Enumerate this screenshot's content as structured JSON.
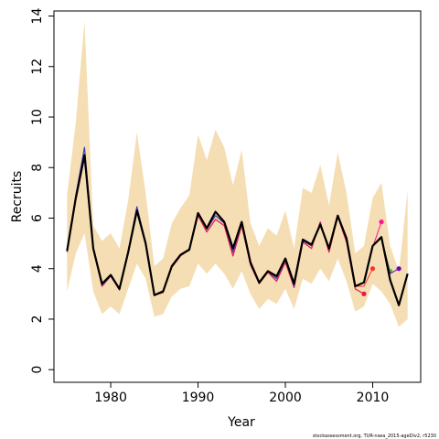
{
  "chart_data": {
    "type": "line",
    "xlabel": "Year",
    "ylabel": "Recruits",
    "xlim": [
      1973.5,
      2015.5
    ],
    "ylim": [
      -0.5,
      14.2
    ],
    "x_ticks": [
      "1980",
      "1990",
      "2000",
      "2010"
    ],
    "y_ticks": [
      "0",
      "2",
      "4",
      "6",
      "8",
      "10",
      "12",
      "14"
    ],
    "grid": false,
    "footer": "stockassessment.org, TUR-nsea_2015-ageDiv2, r5230",
    "confidence_band": {
      "color": "#f5deb3",
      "years": [
        1975,
        1976,
        1977,
        1978,
        1979,
        1980,
        1981,
        1982,
        1983,
        1984,
        1985,
        1986,
        1987,
        1988,
        1989,
        1990,
        1991,
        1992,
        1993,
        1994,
        1995,
        1996,
        1997,
        1998,
        1999,
        2000,
        2001,
        2002,
        2003,
        2004,
        2005,
        2006,
        2007,
        2008,
        2009,
        2010,
        2011,
        2012,
        2013,
        2014
      ],
      "lower": [
        3.1,
        4.6,
        5.4,
        3.1,
        2.2,
        2.5,
        2.2,
        3.2,
        4.2,
        3.6,
        2.1,
        2.2,
        2.9,
        3.2,
        3.3,
        4.2,
        3.8,
        4.2,
        3.8,
        3.2,
        3.9,
        3.0,
        2.4,
        2.8,
        2.6,
        3.2,
        2.4,
        3.6,
        3.4,
        4.0,
        3.5,
        4.4,
        3.5,
        2.3,
        2.5,
        3.4,
        3.1,
        2.6,
        1.7,
        2.0
      ],
      "upper": [
        6.9,
        9.8,
        13.8,
        5.7,
        5.1,
        5.4,
        4.8,
        6.7,
        9.4,
        7.0,
        4.1,
        4.4,
        5.8,
        6.4,
        6.9,
        9.3,
        8.3,
        9.5,
        8.8,
        7.3,
        8.7,
        5.8,
        4.9,
        5.6,
        5.3,
        6.3,
        4.8,
        7.2,
        7.0,
        8.1,
        6.5,
        8.6,
        7.0,
        4.6,
        4.9,
        6.8,
        7.4,
        4.9,
        3.9,
        7.1
      ]
    },
    "series": [
      {
        "color": "#000000",
        "width": 2.2,
        "x": [
          1975,
          1976,
          1977,
          1978,
          1979,
          1980,
          1981,
          1982,
          1983,
          1984,
          1985,
          1986,
          1987,
          1988,
          1989,
          1990,
          1991,
          1992,
          1993,
          1994,
          1995,
          1996,
          1997,
          1998,
          1999,
          2000,
          2001,
          2002,
          2003,
          2004,
          2005,
          2006,
          2007,
          2008,
          2009,
          2010,
          2011,
          2012,
          2013,
          2014
        ],
        "y": [
          4.7,
          6.8,
          8.5,
          4.8,
          3.4,
          3.75,
          3.2,
          4.65,
          6.3,
          5.0,
          2.95,
          3.1,
          4.1,
          4.55,
          4.75,
          6.2,
          5.6,
          6.25,
          5.85,
          4.8,
          5.85,
          4.25,
          3.45,
          3.9,
          3.7,
          4.4,
          3.4,
          5.15,
          4.95,
          5.75,
          4.8,
          6.1,
          5.2,
          3.3,
          3.45,
          4.9,
          5.25,
          3.55,
          2.55,
          3.8
        ]
      },
      {
        "color": "#e6194b",
        "width": 1.2,
        "x": [
          1975,
          1976,
          1977,
          1978,
          1979,
          1980,
          1981,
          1982,
          1983,
          1984,
          1985,
          1986,
          1987,
          1988,
          1989,
          1990,
          1991,
          1992,
          1993,
          1994,
          1995,
          1996,
          1997,
          1998,
          1999,
          2000,
          2001,
          2002,
          2003,
          2004,
          2005,
          2006,
          2007,
          2008,
          2009
        ],
        "y": [
          4.65,
          6.7,
          8.4,
          4.75,
          3.3,
          3.7,
          3.15,
          4.6,
          6.35,
          4.95,
          2.95,
          3.05,
          4.05,
          4.5,
          4.75,
          6.1,
          5.45,
          5.95,
          5.7,
          4.5,
          5.7,
          4.15,
          3.4,
          3.85,
          3.5,
          4.25,
          3.25,
          5.05,
          4.8,
          5.85,
          4.65,
          6.05,
          5.05,
          3.2,
          3.0
        ],
        "point_last": true
      },
      {
        "color": "#3c3cb4",
        "width": 1.2,
        "x": [
          1975,
          1976,
          1977,
          1978,
          1979,
          1980,
          1981,
          1982,
          1983,
          1984,
          1985,
          1986,
          1987,
          1988,
          1989,
          1990,
          1991,
          1992,
          1993,
          1994,
          1995,
          1996,
          1997,
          1998,
          1999,
          2000,
          2001,
          2002,
          2003,
          2004,
          2005,
          2006,
          2007,
          2008
        ],
        "y": [
          4.7,
          6.9,
          8.8,
          4.85,
          3.35,
          3.72,
          3.2,
          4.7,
          6.45,
          5.05,
          2.97,
          3.12,
          4.12,
          4.56,
          4.78,
          6.2,
          5.55,
          6.1,
          5.8,
          4.65,
          5.8,
          4.22,
          3.42,
          3.88,
          3.6,
          4.35,
          3.3,
          5.1,
          4.9,
          5.8,
          4.75,
          6.1,
          5.15,
          3.25
        ]
      },
      {
        "color": "#ff2e2e",
        "width": 1.0,
        "x": [
          2008,
          2009,
          2010
        ],
        "y": [
          3.3,
          3.3,
          4.0
        ],
        "point_last": true
      },
      {
        "color": "#ff1493",
        "width": 1.0,
        "x": [
          2009,
          2010,
          2011
        ],
        "y": [
          3.45,
          4.85,
          5.85
        ],
        "point_last": true
      },
      {
        "color": "#33cc33",
        "width": 1.0,
        "x": [
          2010,
          2011,
          2012
        ],
        "y": [
          4.9,
          5.2,
          3.9
        ],
        "point_last": true
      },
      {
        "color": "#6a0dad",
        "width": 1.0,
        "x": [
          2011,
          2012,
          2013
        ],
        "y": [
          5.25,
          3.8,
          4.0
        ],
        "point_last": true
      }
    ]
  }
}
